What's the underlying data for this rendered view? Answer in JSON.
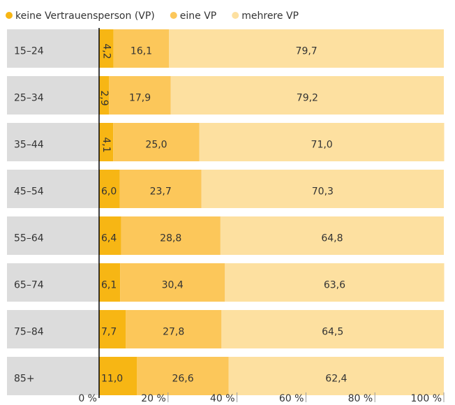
{
  "chart_data": {
    "type": "stacked-bar-horizontal",
    "categories": [
      "15–24",
      "25–34",
      "35–44",
      "45–54",
      "55–64",
      "65–74",
      "75–84",
      "85+"
    ],
    "series": [
      {
        "name": "keine Vertrauensperson (VP)",
        "color": "#f7b614",
        "values": [
          4.2,
          2.9,
          4.1,
          6.0,
          6.4,
          6.1,
          7.7,
          11.0
        ],
        "value_labels": [
          "4,2",
          "2,9",
          "4,1",
          "6,0",
          "6,4",
          "6,1",
          "7,7",
          "11,0"
        ]
      },
      {
        "name": "eine VP",
        "color": "#fcc75a",
        "values": [
          16.1,
          17.9,
          25.0,
          23.7,
          28.8,
          30.4,
          27.8,
          26.6
        ],
        "value_labels": [
          "16,1",
          "17,9",
          "25,0",
          "23,7",
          "28,8",
          "30,4",
          "27,8",
          "26,6"
        ]
      },
      {
        "name": "mehrere VP",
        "color": "#fde0a0",
        "values": [
          79.7,
          79.2,
          71.0,
          70.3,
          64.8,
          63.6,
          64.5,
          62.4
        ],
        "value_labels": [
          "79,7",
          "79,2",
          "71,0",
          "70,3",
          "64,8",
          "63,6",
          "64,5",
          "62,4"
        ]
      }
    ],
    "xlim": [
      0,
      100
    ],
    "xticks": [
      {
        "value": 0,
        "label": "0 %"
      },
      {
        "value": 20,
        "label": "20 %"
      },
      {
        "value": 40,
        "label": "40 %"
      },
      {
        "value": 60,
        "label": "60 %"
      },
      {
        "value": 80,
        "label": "80 %"
      },
      {
        "value": 100,
        "label": "100 %"
      }
    ],
    "label_background": "#dcdcdc"
  }
}
